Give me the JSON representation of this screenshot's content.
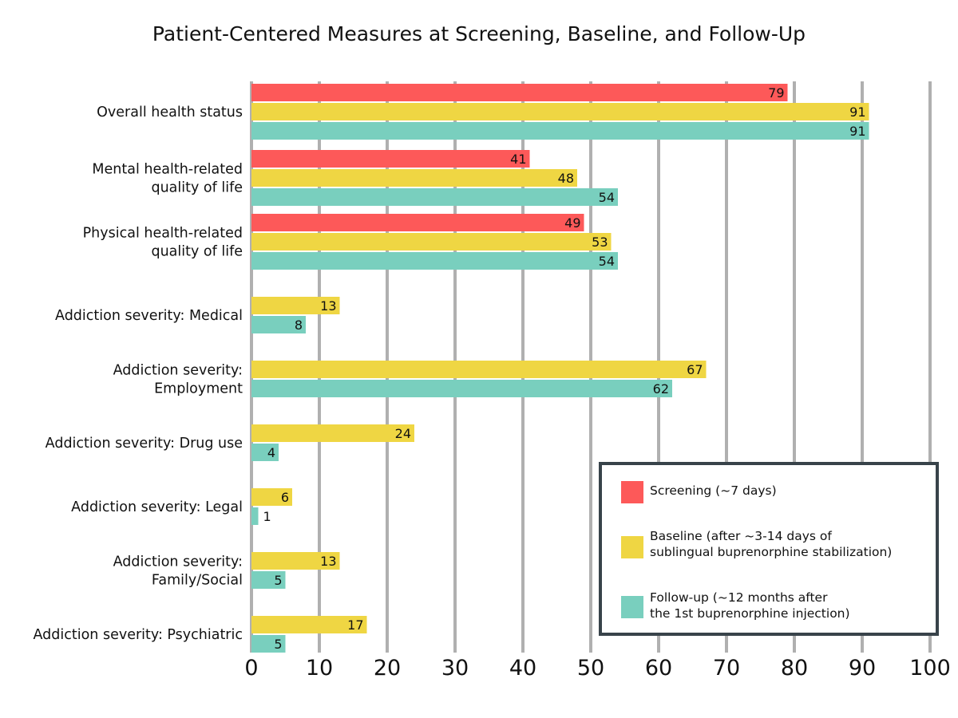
{
  "chart_data": {
    "type": "bar",
    "orientation": "horizontal",
    "title": "Patient-Centered Measures at Screening, Baseline, and Follow-Up",
    "xlabel": "",
    "ylabel": "",
    "xlim": [
      0,
      100
    ],
    "xticks": [
      "0",
      "10",
      "20",
      "30",
      "40",
      "50",
      "60",
      "70",
      "80",
      "90",
      "100"
    ],
    "grid": "vertical",
    "legend_position": "bottom-right",
    "colors": {
      "screening": "#fd5959",
      "baseline": "#efd643",
      "followup": "#79cfbe",
      "grid": "#b0b0b0",
      "legend_border": "#38434a"
    },
    "categories": [
      "Overall health status",
      "Mental health-related\nquality of life",
      "Physical health-related\nquality of life",
      "Addiction severity: Medical",
      "Addiction severity:\nEmployment",
      "Addiction severity: Drug use",
      "Addiction severity: Legal",
      "Addiction severity:\nFamily/Social",
      "Addiction severity: Psychiatric"
    ],
    "series": [
      {
        "key": "screening",
        "name": "Screening (~7 days)",
        "values": [
          79,
          41,
          49,
          null,
          null,
          null,
          null,
          null,
          null
        ]
      },
      {
        "key": "baseline",
        "name": "Baseline (after ~3-14 days of\nsublingual buprenorphine stabilization)",
        "values": [
          91,
          48,
          53,
          13,
          67,
          24,
          6,
          13,
          17
        ]
      },
      {
        "key": "followup",
        "name": "Follow-up (~12 months after\nthe 1st buprenorphine injection)",
        "values": [
          91,
          54,
          54,
          8,
          62,
          4,
          1,
          5,
          5
        ]
      }
    ]
  }
}
